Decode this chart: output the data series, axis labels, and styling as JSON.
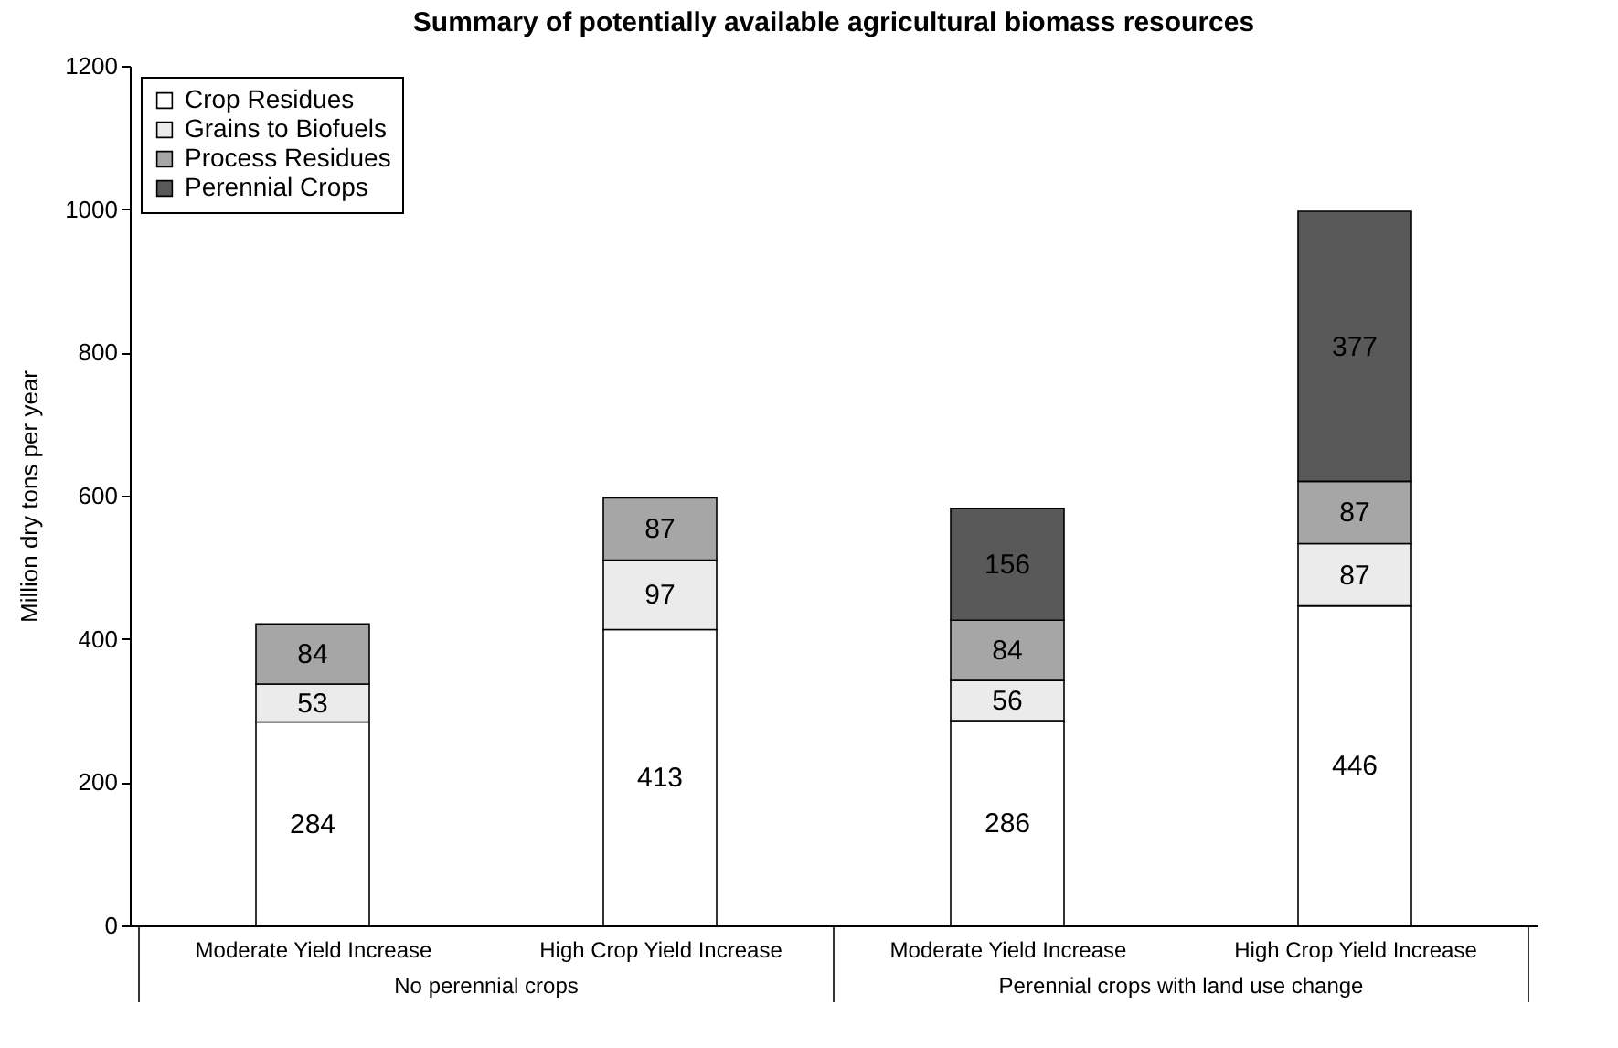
{
  "chart_data": {
    "type": "bar",
    "title": "Summary of potentially available agricultural biomass resources",
    "ylabel": "Million dry tons per year",
    "categories": [
      "Moderate Yield Increase",
      "High Crop Yield Increase",
      "Moderate Yield Increase",
      "High Crop Yield Increase"
    ],
    "annotations": [
      "No perennial crops",
      "Perennial crops with land use change"
    ],
    "stacked": true,
    "data_labels": true,
    "legend": "top left",
    "ylim": [
      0,
      1200
    ],
    "yticks": [
      0,
      200,
      400,
      600,
      800,
      1000,
      1200
    ],
    "series": [
      {
        "name": "Crop Residues",
        "color": "#ffffff",
        "values": [
          284,
          413,
          286,
          446
        ]
      },
      {
        "name": "Grains to Biofuels",
        "color": "#ebebeb",
        "values": [
          53,
          97,
          56,
          87
        ]
      },
      {
        "name": "Process Residues",
        "color": "#a6a6a6",
        "values": [
          84,
          87,
          84,
          87
        ]
      },
      {
        "name": "Perennial Crops",
        "color": "#595959",
        "values": [
          null,
          null,
          156,
          377
        ]
      }
    ]
  }
}
